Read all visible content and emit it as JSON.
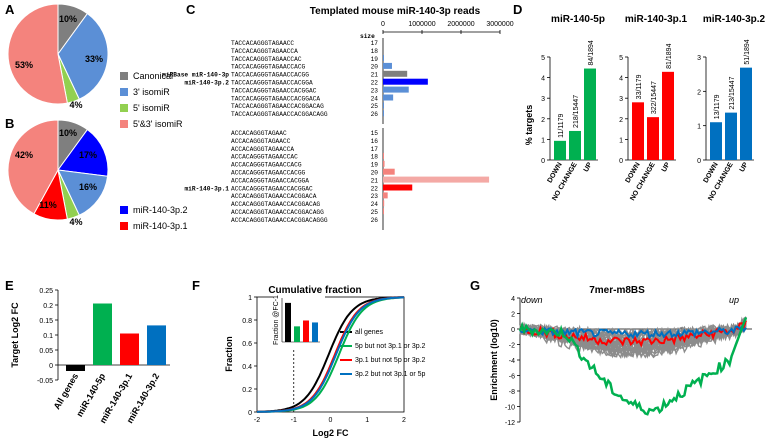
{
  "panel_letters": [
    "A",
    "B",
    "C",
    "D",
    "E",
    "F",
    "G"
  ],
  "panel_a": {
    "chart_data": {
      "type": "pie",
      "labels": [
        "Canonical",
        "3' isomiR",
        "5' isomiR",
        "5'&3' isomiR"
      ],
      "values": [
        10,
        33,
        4,
        53
      ],
      "value_labels": [
        "10%",
        "33%",
        "4%",
        "53%"
      ],
      "colors": [
        "#7f7f7f",
        "#5b8fd6",
        "#92d050",
        "#f4837d"
      ]
    },
    "legend": [
      "Canonical",
      "3' isomiR",
      "5' isomiR",
      "5'&3' isomiR"
    ]
  },
  "panel_b": {
    "chart_data": {
      "type": "pie",
      "labels": [
        "Canonical",
        "miR-140-3p.2",
        "3' isomiR",
        "5' isomiR",
        "miR-140-3p.1",
        "5'&3' isomiR"
      ],
      "values": [
        10,
        17,
        16,
        4,
        11,
        42
      ],
      "value_labels": [
        "10%",
        "17%",
        "16%",
        "4%",
        "11%",
        "42%"
      ],
      "colors": [
        "#7f7f7f",
        "#0000ff",
        "#5b8fd6",
        "#92d050",
        "#ff0000",
        "#f4837d"
      ]
    },
    "legend": [
      "miR-140-3p.2",
      "miR-140-3p.1"
    ]
  },
  "panel_c": {
    "title": "Templated mouse miR-140-3p reads",
    "size_header": "size",
    "axis_ticks": [
      "0",
      "1000000",
      "2000000",
      "3000000"
    ],
    "axis_max": 3000000,
    "group1": [
      {
        "seq": "TACCACAGGGTAGAACC",
        "size": "17",
        "value": 0,
        "color": "#5b8fd6",
        "label": ""
      },
      {
        "seq": "TACCACAGGGTAGAACCA",
        "size": "18",
        "value": 0,
        "color": "#5b8fd6",
        "label": ""
      },
      {
        "seq": "TACCACAGGGTAGAACCAC",
        "size": "19",
        "value": 10000,
        "color": "#5b8fd6",
        "label": ""
      },
      {
        "seq": "TACCACAGGGTAGAACCACG",
        "size": "20",
        "value": 230000,
        "color": "#5b8fd6",
        "label": ""
      },
      {
        "seq": "TACCACAGGGTAGAACCACGG",
        "size": "21",
        "value": 620000,
        "color": "#7f7f7f",
        "label": "miRBase miR-140-3p"
      },
      {
        "seq": "TACCACAGGGTAGAACCACGGA",
        "size": "22",
        "value": 1150000,
        "color": "#0000ff",
        "label": "miR-140-3p.2"
      },
      {
        "seq": "TACCACAGGGTAGAACCACGGAC",
        "size": "23",
        "value": 660000,
        "color": "#5b8fd6",
        "label": ""
      },
      {
        "seq": "TACCACAGGGTAGAACCACGGACA",
        "size": "24",
        "value": 260000,
        "color": "#5b8fd6",
        "label": ""
      },
      {
        "seq": "TACCACAGGGTAGAACCACGGACAG",
        "size": "25",
        "value": 20000,
        "color": "#5b8fd6",
        "label": ""
      },
      {
        "seq": "TACCACAGGGTAGAACCACGGACAGG",
        "size": "26",
        "value": 5000,
        "color": "#5b8fd6",
        "label": ""
      }
    ],
    "group2": [
      {
        "seq": "ACCACAGGGTAGAAC",
        "size": "15",
        "value": 0,
        "color": "#f4837d",
        "label": ""
      },
      {
        "seq": "ACCACAGGGTAGAACC",
        "size": "16",
        "value": 0,
        "color": "#f4837d",
        "label": ""
      },
      {
        "seq": "ACCACAGGGTAGAACCA",
        "size": "17",
        "value": 0,
        "color": "#f4837d",
        "label": ""
      },
      {
        "seq": "ACCACAGGGTAGAACCAC",
        "size": "18",
        "value": 10000,
        "color": "#f4837d",
        "label": ""
      },
      {
        "seq": "ACCACAGGGTAGAACCACG",
        "size": "19",
        "value": 40000,
        "color": "#f4837d",
        "label": ""
      },
      {
        "seq": "ACCACAGGGTAGAACCACGG",
        "size": "20",
        "value": 300000,
        "color": "#f4837d",
        "label": ""
      },
      {
        "seq": "ACCACAGGGTAGAACCACGGA",
        "size": "21",
        "value": 2720000,
        "color": "#f4a9a5",
        "label": ""
      },
      {
        "seq": "ACCACAGGGTAGAACCACGGAC",
        "size": "22",
        "value": 750000,
        "color": "#ff0000",
        "label": "miR-140-3p.1"
      },
      {
        "seq": "ACCACAGGGTAGAACCACGGACA",
        "size": "23",
        "value": 120000,
        "color": "#f4837d",
        "label": ""
      },
      {
        "seq": "ACCACAGGGTAGAACCACGGACAG",
        "size": "24",
        "value": 30000,
        "color": "#f4837d",
        "label": ""
      },
      {
        "seq": "ACCACAGGGTAGAACCACGGACAGG",
        "size": "25",
        "value": 10000,
        "color": "#f4837d",
        "label": ""
      },
      {
        "seq": "ACCACAGGGTAGAACCACGGACAGGG",
        "size": "26",
        "value": 0,
        "color": "#f4837d",
        "label": ""
      }
    ]
  },
  "panel_d": {
    "ylabel": "% targets",
    "categories": [
      "DOWN",
      "NO CHANGE",
      "UP"
    ],
    "charts": [
      {
        "title": "miR-140-5p",
        "color": "#00b050",
        "ylim": [
          0,
          5
        ],
        "ticks": [
          "0",
          "1",
          "2",
          "3",
          "4",
          "5"
        ],
        "values": [
          0.93,
          1.41,
          4.44
        ],
        "labels": [
          "11/1179",
          "218/15447",
          "84/1894"
        ]
      },
      {
        "title": "miR-140-3p.1",
        "color": "#ff0000",
        "ylim": [
          0,
          5
        ],
        "ticks": [
          "0",
          "1",
          "2",
          "3",
          "4",
          "5"
        ],
        "values": [
          2.8,
          2.08,
          4.28
        ],
        "labels": [
          "33/1179",
          "322/15447",
          "81/1894"
        ]
      },
      {
        "title": "miR-140-3p.2",
        "color": "#0070c0",
        "ylim": [
          0,
          3
        ],
        "ticks": [
          "0",
          "1",
          "2",
          "3"
        ],
        "values": [
          1.1,
          1.38,
          2.69
        ],
        "labels": [
          "13/1179",
          "213/15447",
          "51/1894"
        ]
      }
    ]
  },
  "panel_e": {
    "chart_data": {
      "type": "bar",
      "ylabel": "Target Log2 FC",
      "ylim": [
        -0.05,
        0.25
      ],
      "ticks": [
        "-0.05",
        "0",
        "0.05",
        "0.1",
        "0.15",
        "0.2",
        "0.25"
      ],
      "categories": [
        "All genes",
        "miR-140-5p",
        "miR-140-3p.1",
        "miR-140-3p.2"
      ],
      "values": [
        -0.02,
        0.205,
        0.105,
        0.132
      ],
      "colors": [
        "#000000",
        "#00b050",
        "#ff0000",
        "#0070c0"
      ]
    }
  },
  "panel_f": {
    "title": "Cumulative fraction",
    "xlabel": "Log2 FC",
    "ylabel": "Fraction",
    "xticks": [
      "-2",
      "-1",
      "0",
      "1",
      "2"
    ],
    "yticks": [
      "0",
      "0.2",
      "0.4",
      "0.6",
      "0.8",
      "1"
    ],
    "series": [
      {
        "name": "all genes",
        "color": "#000000",
        "shift": -0.05
      },
      {
        "name": "5p but not 3p.1 or 3p.2",
        "color": "#00b050",
        "shift": 0.23
      },
      {
        "name": "3p.1 but not 5p or 3p.2",
        "color": "#ff0000",
        "shift": 0.12
      },
      {
        "name": "3p.2 but not 3p.1 or 5p",
        "color": "#0070c0",
        "shift": 0.15
      }
    ],
    "inset": {
      "ylabel": "Fraction @FC-1",
      "ticks": [
        "0",
        "0.02",
        "0.04"
      ],
      "values": [
        0.04,
        0.016,
        0.022,
        0.02
      ],
      "colors": [
        "#000000",
        "#00b050",
        "#ff0000",
        "#0070c0"
      ]
    }
  },
  "panel_g": {
    "title": "7mer-m8BS",
    "ylabel": "Enrichment (log10)",
    "yticks": [
      "-12",
      "-10",
      "-8",
      "-6",
      "-4",
      "-2",
      "0",
      "2",
      "4"
    ],
    "down_label": "down",
    "up_label": "up"
  }
}
